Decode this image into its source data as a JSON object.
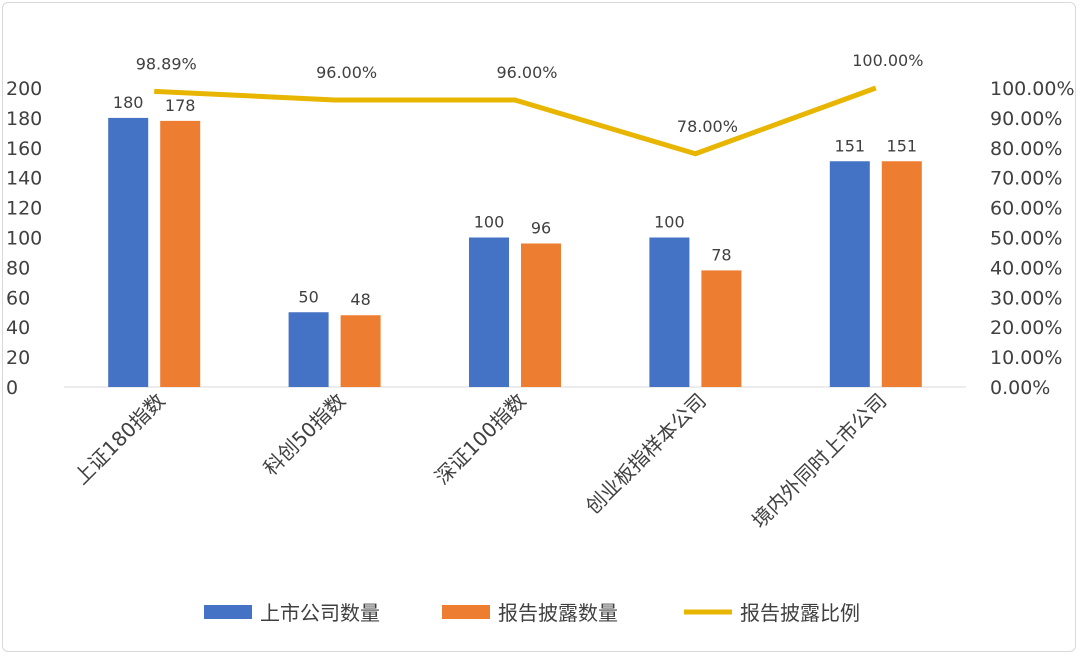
{
  "chart_data": {
    "type": "bar+line",
    "categories": [
      "上证180指数",
      "科创50指数",
      "深证100指数",
      "创业板指样本公司",
      "境内外同时上市公司"
    ],
    "series": [
      {
        "name": "上市公司数量",
        "type": "bar",
        "axis": "left",
        "color": "#4472C4",
        "values": [
          180,
          50,
          100,
          100,
          151
        ],
        "labels": [
          "180",
          "50",
          "100",
          "100",
          "151"
        ]
      },
      {
        "name": "报告披露数量",
        "type": "bar",
        "axis": "left",
        "color": "#ED7D31",
        "values": [
          178,
          48,
          96,
          78,
          151
        ],
        "labels": [
          "178",
          "48",
          "96",
          "78",
          "151"
        ]
      },
      {
        "name": "报告披露比例",
        "type": "line",
        "axis": "right",
        "color": "#E8B500",
        "values": [
          98.89,
          96.0,
          96.0,
          78.0,
          100.0
        ],
        "labels": [
          "98.89%",
          "96.00%",
          "96.00%",
          "78.00%",
          "100.00%"
        ]
      }
    ],
    "left_axis": {
      "ylim": [
        0,
        200
      ],
      "ticks": [
        "0",
        "20",
        "40",
        "60",
        "80",
        "100",
        "120",
        "140",
        "160",
        "180",
        "200"
      ]
    },
    "right_axis": {
      "ylim": [
        0,
        100
      ],
      "ticks": [
        "0.00%",
        "10.00%",
        "20.00%",
        "30.00%",
        "40.00%",
        "50.00%",
        "60.00%",
        "70.00%",
        "80.00%",
        "90.00%",
        "100.00%"
      ]
    },
    "grid": false,
    "legend": "bottom"
  }
}
